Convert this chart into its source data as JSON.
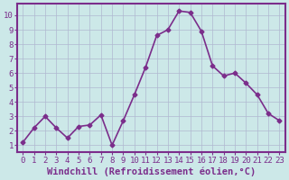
{
  "x": [
    0,
    1,
    2,
    3,
    4,
    5,
    6,
    7,
    8,
    9,
    10,
    11,
    12,
    13,
    14,
    15,
    16,
    17,
    18,
    19,
    20,
    21,
    22,
    23
  ],
  "y": [
    1.2,
    2.2,
    3.0,
    2.2,
    1.5,
    2.3,
    2.4,
    3.1,
    1.0,
    2.7,
    4.5,
    6.4,
    8.6,
    9.0,
    10.3,
    10.2,
    8.9,
    6.5,
    5.8,
    6.0,
    5.3,
    4.5,
    3.2,
    2.7
  ],
  "line_color": "#7b2d8b",
  "marker": "D",
  "marker_size": 2.5,
  "background_color": "#cce8e8",
  "grid_color": "#b0b8d0",
  "xlabel": "Windchill (Refroidissement éolien,°C)",
  "ylabel": "",
  "title": "",
  "xlim": [
    -0.5,
    23.5
  ],
  "ylim": [
    0.5,
    10.8
  ],
  "yticks": [
    1,
    2,
    3,
    4,
    5,
    6,
    7,
    8,
    9,
    10
  ],
  "xticks": [
    0,
    1,
    2,
    3,
    4,
    5,
    6,
    7,
    8,
    9,
    10,
    11,
    12,
    13,
    14,
    15,
    16,
    17,
    18,
    19,
    20,
    21,
    22,
    23
  ],
  "tick_color": "#7b2d8b",
  "xlabel_color": "#7b2d8b",
  "axis_label_fontsize": 7.5,
  "tick_fontsize": 6.5,
  "linewidth": 1.2,
  "spine_color": "#7b2d8b",
  "spine_linewidth": 1.5
}
